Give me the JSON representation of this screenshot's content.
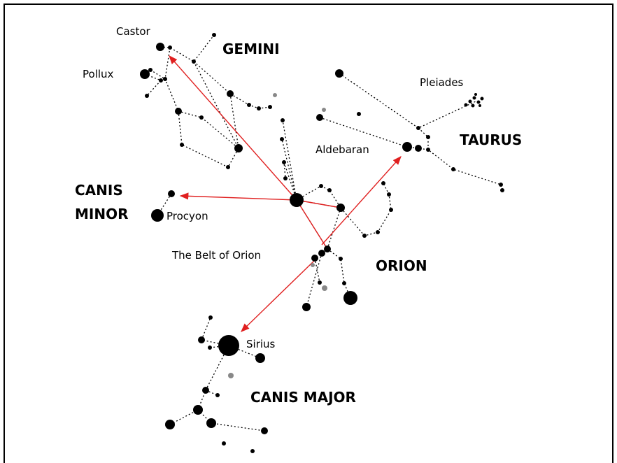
{
  "constellations": {
    "gemini": "GEMINI",
    "taurus": "TAURUS",
    "canis_minor": [
      "CANIS",
      "MINOR"
    ],
    "orion": "ORION",
    "canis_major": "CANIS MAJOR"
  },
  "stars": {
    "castor": "Castor",
    "pollux": "Pollux",
    "pleiades": "Pleiades",
    "aldebaran": "Aldebaran",
    "procyon": "Procyon",
    "belt": "The Belt of Orion",
    "sirius": "Sirius"
  }
}
